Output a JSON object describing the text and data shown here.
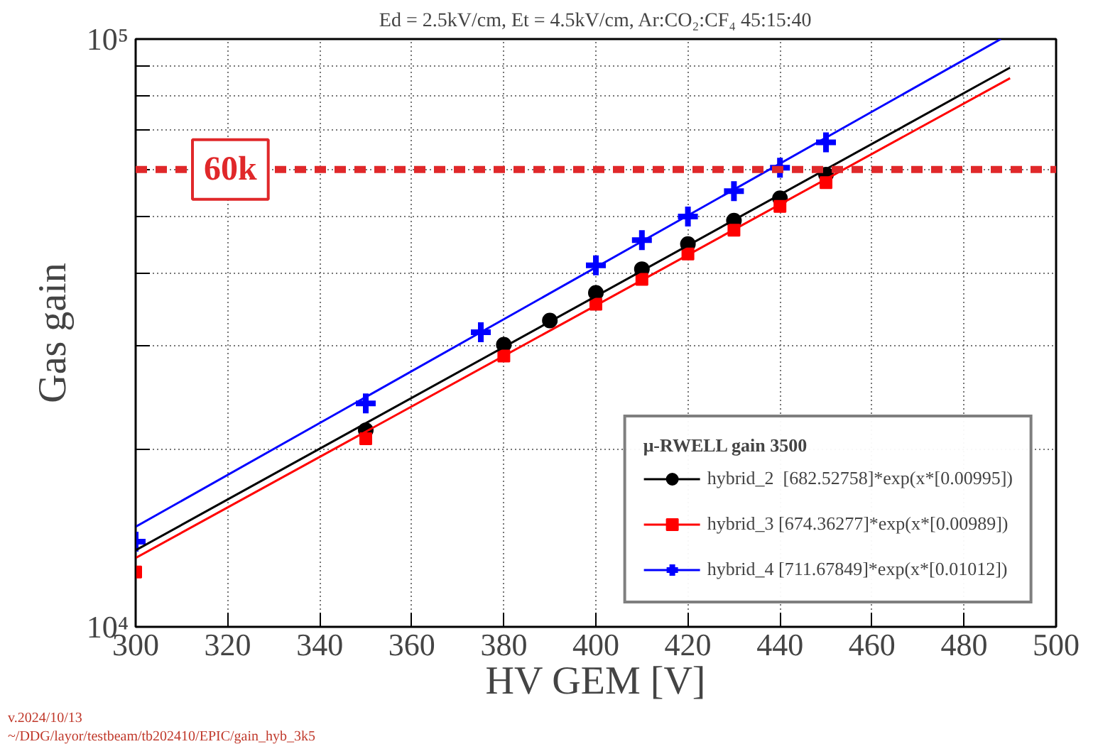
{
  "chart_data": {
    "type": "scatter",
    "title": "Ed = 2.5kV/cm, Et = 4.5kV/cm, Ar:CO₂:CF₄ 45:15:40",
    "xlabel": "HV GEM [V]",
    "ylabel": "Gas gain",
    "legend_title": "μ-RWELL gain 3500",
    "log": "y",
    "grid": true,
    "legend": "bottom right",
    "xlim": [
      300,
      500
    ],
    "xticks": [
      300,
      320,
      340,
      360,
      380,
      400,
      420,
      440,
      460,
      480,
      500
    ],
    "ylim": [
      10000,
      100000
    ],
    "yticks": [
      {
        "value": 10000,
        "label": "10⁴"
      },
      {
        "value": 20000,
        "label": null
      },
      {
        "value": 30000,
        "label": null
      },
      {
        "value": 40000,
        "label": null
      },
      {
        "value": 50000,
        "label": null
      },
      {
        "value": 60000,
        "label": null
      },
      {
        "value": 70000,
        "label": null
      },
      {
        "value": 80000,
        "label": null
      },
      {
        "value": 90000,
        "label": null
      },
      {
        "value": 100000,
        "label": "10⁵"
      }
    ],
    "series": [
      {
        "name": "hybrid_2  [682.52758]*exp(x*[0.00995])",
        "color": "#000000",
        "marker": "circle",
        "x": [
          350,
          380,
          390,
          400,
          410,
          420,
          430,
          440,
          450
        ],
        "values": [
          21600,
          30200,
          33200,
          37000,
          40600,
          44800,
          49100,
          53600,
          58800
        ]
      },
      {
        "name": "hybrid_3 [674.36277]*exp(x*[0.00989])",
        "color": "#ff0000",
        "marker": "square",
        "x": [
          300,
          350,
          380,
          400,
          410,
          420,
          430,
          440,
          450
        ],
        "values": [
          12400,
          20900,
          28900,
          35400,
          39000,
          43100,
          47300,
          51900,
          57000
        ]
      },
      {
        "name": "hybrid_4 [711.67849]*exp(x*[0.01012])",
        "color": "#0000ff",
        "marker": "cross",
        "x": [
          300,
          350,
          375,
          400,
          410,
          420,
          430,
          440,
          450
        ],
        "values": [
          13960,
          24000,
          31700,
          41200,
          45500,
          49900,
          55100,
          60400,
          66700
        ]
      },
      {
        "type": "line",
        "color": "#000000",
        "x": [
          300,
          490
        ],
        "values": [
          13500,
          89400
        ]
      },
      {
        "type": "line",
        "color": "#ff0000",
        "x": [
          300,
          490
        ],
        "values": [
          13100,
          85800
        ]
      },
      {
        "type": "line",
        "color": "#0000ff",
        "x": [
          300,
          488
        ],
        "values": [
          14800,
          100000
        ]
      }
    ],
    "ref_lines": [
      {
        "axis": "y",
        "value": 60000,
        "label": "60k",
        "color": "#e0282a",
        "line_style": "dashed"
      }
    ],
    "annotations": [
      "v.2024/10/13",
      "~/DDG/layor/testbeam/tb202410/EPIC/gain_hyb_3k5"
    ]
  }
}
